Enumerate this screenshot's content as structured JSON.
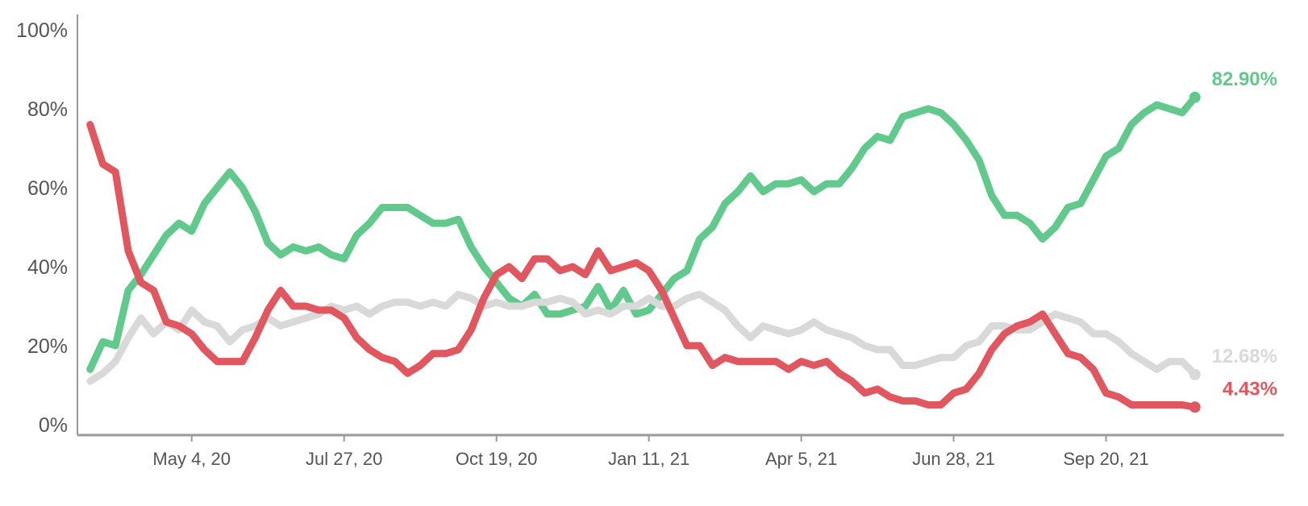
{
  "chart_data": {
    "type": "line",
    "title": "",
    "xlabel": "",
    "ylabel": "",
    "ylim": [
      0,
      100
    ],
    "y_ticks": [
      "0%",
      "20%",
      "40%",
      "60%",
      "80%",
      "100%"
    ],
    "x_ticks": [
      "May 4, 20",
      "Jul 27, 20",
      "Oct 19, 20",
      "Jan 11, 21",
      "Apr 5, 21",
      "Jun 28, 21",
      "Sep 20, 21"
    ],
    "xlim": [
      "2020-03-02",
      "2021-12-27"
    ],
    "legend": "none",
    "grid": false,
    "series": [
      {
        "color": "#62c98d",
        "end_label": "82.90%",
        "points": [
          [
            "2020-03-09",
            14
          ],
          [
            "2020-03-16",
            21
          ],
          [
            "2020-03-23",
            20
          ],
          [
            "2020-03-30",
            34
          ],
          [
            "2020-04-06",
            38
          ],
          [
            "2020-04-13",
            43
          ],
          [
            "2020-04-20",
            48
          ],
          [
            "2020-04-27",
            51
          ],
          [
            "2020-05-04",
            49
          ],
          [
            "2020-05-11",
            56
          ],
          [
            "2020-05-18",
            60
          ],
          [
            "2020-05-25",
            64
          ],
          [
            "2020-06-01",
            60
          ],
          [
            "2020-06-08",
            54
          ],
          [
            "2020-06-15",
            46
          ],
          [
            "2020-06-22",
            43
          ],
          [
            "2020-06-29",
            45
          ],
          [
            "2020-07-06",
            44
          ],
          [
            "2020-07-13",
            45
          ],
          [
            "2020-07-20",
            43
          ],
          [
            "2020-07-27",
            42
          ],
          [
            "2020-08-03",
            48
          ],
          [
            "2020-08-10",
            51
          ],
          [
            "2020-08-17",
            55
          ],
          [
            "2020-08-24",
            55
          ],
          [
            "2020-08-31",
            55
          ],
          [
            "2020-09-07",
            53
          ],
          [
            "2020-09-14",
            51
          ],
          [
            "2020-09-21",
            51
          ],
          [
            "2020-09-28",
            52
          ],
          [
            "2020-10-05",
            45
          ],
          [
            "2020-10-12",
            40
          ],
          [
            "2020-10-19",
            36
          ],
          [
            "2020-10-26",
            32
          ],
          [
            "2020-11-02",
            30
          ],
          [
            "2020-11-09",
            33
          ],
          [
            "2020-11-16",
            28
          ],
          [
            "2020-11-23",
            28
          ],
          [
            "2020-11-30",
            29
          ],
          [
            "2020-12-07",
            30
          ],
          [
            "2020-12-14",
            35
          ],
          [
            "2020-12-21",
            29
          ],
          [
            "2020-12-28",
            34
          ],
          [
            "2021-01-04",
            28
          ],
          [
            "2021-01-11",
            29
          ],
          [
            "2021-01-18",
            33
          ],
          [
            "2021-01-25",
            37
          ],
          [
            "2021-02-01",
            39
          ],
          [
            "2021-02-08",
            47
          ],
          [
            "2021-02-15",
            50
          ],
          [
            "2021-02-22",
            56
          ],
          [
            "2021-03-01",
            59
          ],
          [
            "2021-03-08",
            63
          ],
          [
            "2021-03-15",
            59
          ],
          [
            "2021-03-22",
            61
          ],
          [
            "2021-03-29",
            61
          ],
          [
            "2021-04-05",
            62
          ],
          [
            "2021-04-12",
            59
          ],
          [
            "2021-04-19",
            61
          ],
          [
            "2021-04-26",
            61
          ],
          [
            "2021-05-03",
            65
          ],
          [
            "2021-05-10",
            70
          ],
          [
            "2021-05-17",
            73
          ],
          [
            "2021-05-24",
            72
          ],
          [
            "2021-05-31",
            78
          ],
          [
            "2021-06-07",
            79
          ],
          [
            "2021-06-14",
            80
          ],
          [
            "2021-06-21",
            79
          ],
          [
            "2021-06-28",
            76
          ],
          [
            "2021-07-05",
            72
          ],
          [
            "2021-07-12",
            67
          ],
          [
            "2021-07-19",
            58
          ],
          [
            "2021-07-26",
            53
          ],
          [
            "2021-08-02",
            53
          ],
          [
            "2021-08-09",
            51
          ],
          [
            "2021-08-16",
            47
          ],
          [
            "2021-08-23",
            50
          ],
          [
            "2021-08-30",
            55
          ],
          [
            "2021-09-06",
            56
          ],
          [
            "2021-09-13",
            62
          ],
          [
            "2021-09-20",
            68
          ],
          [
            "2021-09-27",
            70
          ],
          [
            "2021-10-04",
            76
          ],
          [
            "2021-10-11",
            79
          ],
          [
            "2021-10-18",
            81
          ],
          [
            "2021-10-25",
            80
          ],
          [
            "2021-11-01",
            79
          ],
          [
            "2021-11-08",
            82.9
          ]
        ]
      },
      {
        "color": "#d9d9d9",
        "end_label": "12.68%",
        "points": [
          [
            "2020-03-09",
            11
          ],
          [
            "2020-03-16",
            13
          ],
          [
            "2020-03-23",
            16
          ],
          [
            "2020-03-30",
            22
          ],
          [
            "2020-04-06",
            27
          ],
          [
            "2020-04-13",
            23
          ],
          [
            "2020-04-20",
            26
          ],
          [
            "2020-04-27",
            24
          ],
          [
            "2020-05-04",
            29
          ],
          [
            "2020-05-11",
            26
          ],
          [
            "2020-05-18",
            25
          ],
          [
            "2020-05-25",
            21
          ],
          [
            "2020-06-01",
            24
          ],
          [
            "2020-06-08",
            25
          ],
          [
            "2020-06-15",
            27
          ],
          [
            "2020-06-22",
            25
          ],
          [
            "2020-06-29",
            26
          ],
          [
            "2020-07-06",
            27
          ],
          [
            "2020-07-13",
            28
          ],
          [
            "2020-07-20",
            30
          ],
          [
            "2020-07-27",
            29
          ],
          [
            "2020-08-03",
            30
          ],
          [
            "2020-08-10",
            28
          ],
          [
            "2020-08-17",
            30
          ],
          [
            "2020-08-24",
            31
          ],
          [
            "2020-08-31",
            31
          ],
          [
            "2020-09-07",
            30
          ],
          [
            "2020-09-14",
            31
          ],
          [
            "2020-09-21",
            30
          ],
          [
            "2020-09-28",
            33
          ],
          [
            "2020-10-05",
            32
          ],
          [
            "2020-10-12",
            30
          ],
          [
            "2020-10-19",
            31
          ],
          [
            "2020-10-26",
            30
          ],
          [
            "2020-11-02",
            30
          ],
          [
            "2020-11-09",
            31
          ],
          [
            "2020-11-16",
            31
          ],
          [
            "2020-11-23",
            32
          ],
          [
            "2020-11-30",
            31
          ],
          [
            "2020-12-07",
            28
          ],
          [
            "2020-12-14",
            29
          ],
          [
            "2020-12-21",
            28
          ],
          [
            "2020-12-28",
            30
          ],
          [
            "2021-01-04",
            30
          ],
          [
            "2021-01-11",
            32
          ],
          [
            "2021-01-18",
            30
          ],
          [
            "2021-01-25",
            30
          ],
          [
            "2021-02-01",
            32
          ],
          [
            "2021-02-08",
            33
          ],
          [
            "2021-02-15",
            31
          ],
          [
            "2021-02-22",
            29
          ],
          [
            "2021-03-01",
            25
          ],
          [
            "2021-03-08",
            22
          ],
          [
            "2021-03-15",
            25
          ],
          [
            "2021-03-22",
            24
          ],
          [
            "2021-03-29",
            23
          ],
          [
            "2021-04-05",
            24
          ],
          [
            "2021-04-12",
            26
          ],
          [
            "2021-04-19",
            24
          ],
          [
            "2021-04-26",
            23
          ],
          [
            "2021-05-03",
            22
          ],
          [
            "2021-05-10",
            20
          ],
          [
            "2021-05-17",
            19
          ],
          [
            "2021-05-24",
            19
          ],
          [
            "2021-05-31",
            15
          ],
          [
            "2021-06-07",
            15
          ],
          [
            "2021-06-14",
            16
          ],
          [
            "2021-06-21",
            17
          ],
          [
            "2021-06-28",
            17
          ],
          [
            "2021-07-05",
            20
          ],
          [
            "2021-07-12",
            21
          ],
          [
            "2021-07-19",
            25
          ],
          [
            "2021-07-26",
            25
          ],
          [
            "2021-08-02",
            24
          ],
          [
            "2021-08-09",
            24
          ],
          [
            "2021-08-16",
            26
          ],
          [
            "2021-08-23",
            28
          ],
          [
            "2021-08-30",
            27
          ],
          [
            "2021-09-06",
            26
          ],
          [
            "2021-09-13",
            23
          ],
          [
            "2021-09-20",
            23
          ],
          [
            "2021-09-27",
            21
          ],
          [
            "2021-10-04",
            18
          ],
          [
            "2021-10-11",
            16
          ],
          [
            "2021-10-18",
            14
          ],
          [
            "2021-10-25",
            16
          ],
          [
            "2021-11-01",
            16
          ],
          [
            "2021-11-08",
            12.68
          ]
        ]
      },
      {
        "color": "#e0575f",
        "end_label": "4.43%",
        "points": [
          [
            "2020-03-09",
            76
          ],
          [
            "2020-03-16",
            66
          ],
          [
            "2020-03-23",
            64
          ],
          [
            "2020-03-30",
            44
          ],
          [
            "2020-04-06",
            36
          ],
          [
            "2020-04-13",
            34
          ],
          [
            "2020-04-20",
            26
          ],
          [
            "2020-04-27",
            25
          ],
          [
            "2020-05-04",
            23
          ],
          [
            "2020-05-11",
            19
          ],
          [
            "2020-05-18",
            16
          ],
          [
            "2020-05-25",
            16
          ],
          [
            "2020-06-01",
            16
          ],
          [
            "2020-06-08",
            22
          ],
          [
            "2020-06-15",
            29
          ],
          [
            "2020-06-22",
            34
          ],
          [
            "2020-06-29",
            30
          ],
          [
            "2020-07-06",
            30
          ],
          [
            "2020-07-13",
            29
          ],
          [
            "2020-07-20",
            29
          ],
          [
            "2020-07-27",
            27
          ],
          [
            "2020-08-03",
            22
          ],
          [
            "2020-08-10",
            19
          ],
          [
            "2020-08-17",
            17
          ],
          [
            "2020-08-24",
            16
          ],
          [
            "2020-08-31",
            13
          ],
          [
            "2020-09-07",
            15
          ],
          [
            "2020-09-14",
            18
          ],
          [
            "2020-09-21",
            18
          ],
          [
            "2020-09-28",
            19
          ],
          [
            "2020-10-05",
            24
          ],
          [
            "2020-10-12",
            32
          ],
          [
            "2020-10-19",
            38
          ],
          [
            "2020-10-26",
            40
          ],
          [
            "2020-11-02",
            37
          ],
          [
            "2020-11-09",
            42
          ],
          [
            "2020-11-16",
            42
          ],
          [
            "2020-11-23",
            39
          ],
          [
            "2020-11-30",
            40
          ],
          [
            "2020-12-07",
            38
          ],
          [
            "2020-12-14",
            44
          ],
          [
            "2020-12-21",
            39
          ],
          [
            "2020-12-28",
            40
          ],
          [
            "2021-01-04",
            41
          ],
          [
            "2021-01-11",
            39
          ],
          [
            "2021-01-18",
            34
          ],
          [
            "2021-01-25",
            27
          ],
          [
            "2021-02-01",
            20
          ],
          [
            "2021-02-08",
            20
          ],
          [
            "2021-02-15",
            15
          ],
          [
            "2021-02-22",
            17
          ],
          [
            "2021-03-01",
            16
          ],
          [
            "2021-03-08",
            16
          ],
          [
            "2021-03-15",
            16
          ],
          [
            "2021-03-22",
            16
          ],
          [
            "2021-03-29",
            14
          ],
          [
            "2021-04-05",
            16
          ],
          [
            "2021-04-12",
            15
          ],
          [
            "2021-04-19",
            16
          ],
          [
            "2021-04-26",
            13
          ],
          [
            "2021-05-03",
            11
          ],
          [
            "2021-05-10",
            8
          ],
          [
            "2021-05-17",
            9
          ],
          [
            "2021-05-24",
            7
          ],
          [
            "2021-05-31",
            6
          ],
          [
            "2021-06-07",
            6
          ],
          [
            "2021-06-14",
            5
          ],
          [
            "2021-06-21",
            5
          ],
          [
            "2021-06-28",
            8
          ],
          [
            "2021-07-05",
            9
          ],
          [
            "2021-07-12",
            13
          ],
          [
            "2021-07-19",
            19
          ],
          [
            "2021-07-26",
            23
          ],
          [
            "2021-08-02",
            25
          ],
          [
            "2021-08-09",
            26
          ],
          [
            "2021-08-16",
            28
          ],
          [
            "2021-08-23",
            23
          ],
          [
            "2021-08-30",
            18
          ],
          [
            "2021-09-06",
            17
          ],
          [
            "2021-09-13",
            14
          ],
          [
            "2021-09-20",
            8
          ],
          [
            "2021-09-27",
            7
          ],
          [
            "2021-10-04",
            5
          ],
          [
            "2021-10-11",
            5
          ],
          [
            "2021-10-18",
            5
          ],
          [
            "2021-10-25",
            5
          ],
          [
            "2021-11-01",
            5
          ],
          [
            "2021-11-08",
            4.43
          ]
        ]
      }
    ]
  }
}
